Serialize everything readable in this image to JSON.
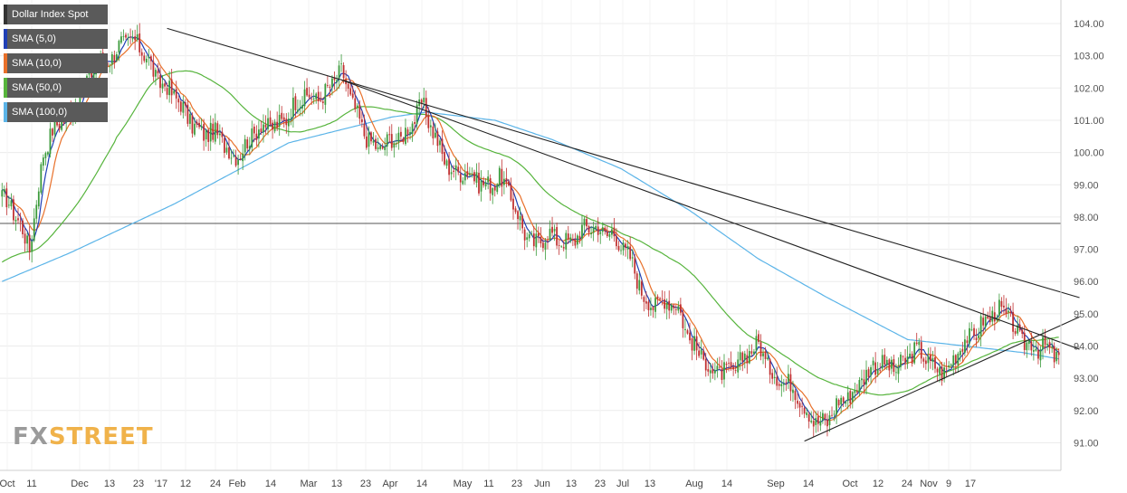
{
  "legend": {
    "items": [
      {
        "label": "Dollar Index Spot",
        "color": "#333333"
      },
      {
        "label": "SMA (5,0)",
        "color": "#1f3fb5"
      },
      {
        "label": "SMA (10,0)",
        "color": "#e8702a"
      },
      {
        "label": "SMA (50,0)",
        "color": "#56b43c"
      },
      {
        "label": "SMA (100,0)",
        "color": "#5bb4e8"
      }
    ]
  },
  "logo": {
    "part1": "FX",
    "part2": "STREET"
  },
  "chart_data": {
    "type": "candlestick",
    "ylim": [
      90.0,
      104.5
    ],
    "yticks": [
      "104.00",
      "103.00",
      "102.00",
      "101.00",
      "100.00",
      "99.00",
      "98.00",
      "97.00",
      "96.00",
      "95.00",
      "94.00",
      "93.00",
      "92.00",
      "91.00"
    ],
    "x_labels": [
      "Oct",
      "11",
      "Dec",
      "13",
      "23",
      "'17",
      "12",
      "24",
      "Feb",
      "14",
      "Mar",
      "13",
      "23",
      "Apr",
      "14",
      "May",
      "11",
      "23",
      "Jun",
      "13",
      "23",
      "Jul",
      "13",
      "Aug",
      "14",
      "Sep",
      "14",
      "Oct",
      "12",
      "24",
      "Nov",
      "9",
      "17"
    ],
    "horizontal_line": 97.8,
    "close_keypoints": [
      [
        0,
        98.6
      ],
      [
        12,
        97.2
      ],
      [
        18,
        100.0
      ],
      [
        35,
        102.0
      ],
      [
        52,
        103.5
      ],
      [
        63,
        103.0
      ],
      [
        78,
        101.3
      ],
      [
        100,
        100.0
      ],
      [
        126,
        101.3
      ],
      [
        148,
        102.3
      ],
      [
        164,
        99.9
      ],
      [
        183,
        101.3
      ],
      [
        198,
        99.3
      ],
      [
        217,
        99.1
      ],
      [
        232,
        97.2
      ],
      [
        248,
        97.4
      ],
      [
        266,
        97.7
      ],
      [
        280,
        95.6
      ],
      [
        295,
        95.1
      ],
      [
        310,
        93.0
      ],
      [
        330,
        93.9
      ],
      [
        350,
        92.1
      ],
      [
        360,
        91.6
      ],
      [
        375,
        93.1
      ],
      [
        398,
        93.7
      ],
      [
        413,
        93.3
      ],
      [
        428,
        94.9
      ],
      [
        438,
        94.9
      ],
      [
        452,
        93.8
      ],
      [
        461,
        93.8
      ]
    ],
    "sma100_keypoints": [
      [
        0,
        96.0
      ],
      [
        30,
        96.9
      ],
      [
        75,
        98.4
      ],
      [
        125,
        100.3
      ],
      [
        170,
        101.1
      ],
      [
        185,
        101.25
      ],
      [
        215,
        101.0
      ],
      [
        240,
        100.4
      ],
      [
        270,
        99.5
      ],
      [
        300,
        98.2
      ],
      [
        330,
        96.7
      ],
      [
        360,
        95.5
      ],
      [
        395,
        94.2
      ],
      [
        420,
        94.0
      ],
      [
        445,
        93.8
      ],
      [
        461,
        93.6
      ]
    ],
    "trendlines": [
      {
        "x1": 72,
        "y1": 103.85,
        "x2": 470,
        "y2": 95.5
      },
      {
        "x1": 148,
        "y1": 102.25,
        "x2": 470,
        "y2": 93.9
      },
      {
        "x1": 350,
        "y1": 91.05,
        "x2": 470,
        "y2": 94.9
      }
    ]
  }
}
